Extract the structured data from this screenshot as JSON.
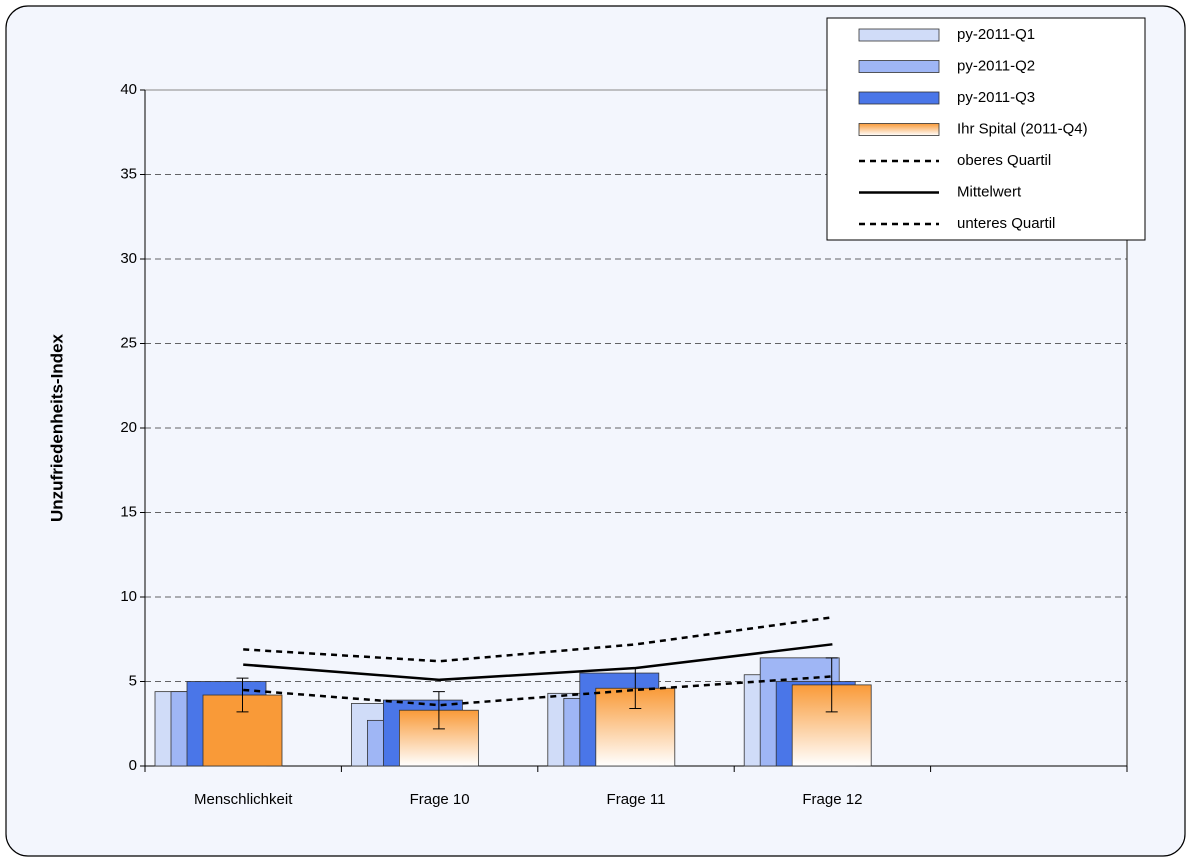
{
  "chart_data": {
    "type": "bar",
    "y_label": "Unzufriedenheits-Index",
    "categories": [
      "Menschlichkeit",
      "Frage 10",
      "Frage 11",
      "Frage 12",
      null
    ],
    "series": [
      {
        "name": "py-2011-Q1",
        "color": "#d0dcf8",
        "values": [
          4.4,
          3.7,
          4.3,
          5.4,
          null
        ]
      },
      {
        "name": "py-2011-Q2",
        "color": "#9fb6f5",
        "values": [
          4.4,
          2.7,
          4.0,
          6.4,
          null
        ]
      },
      {
        "name": "py-2011-Q3",
        "color": "#4a76e8",
        "values": [
          5.0,
          3.9,
          5.5,
          5.0,
          null
        ]
      },
      {
        "name": "Ihr Spital  (2011-Q4)",
        "color": "#f99a38",
        "values": [
          4.2,
          3.3,
          4.6,
          4.8,
          null
        ],
        "errors": [
          1.0,
          1.1,
          1.2,
          1.6,
          null
        ]
      }
    ],
    "lines": [
      {
        "name": "oberes Quartil",
        "color": "#000000",
        "dash": true,
        "values": [
          6.9,
          6.2,
          7.2,
          8.8,
          null
        ]
      },
      {
        "name": "Mittelwert",
        "color": "#000000",
        "dash": false,
        "values": [
          6.0,
          5.1,
          5.8,
          7.2,
          null
        ]
      },
      {
        "name": "unteres Quartil",
        "color": "#000000",
        "dash": true,
        "values": [
          4.5,
          3.6,
          4.5,
          5.3,
          null
        ]
      }
    ],
    "ylim": [
      0,
      40
    ],
    "yticks": [
      0,
      5,
      10,
      15,
      20,
      25,
      30,
      35,
      40
    ],
    "grid": true,
    "legend": "top-right"
  }
}
